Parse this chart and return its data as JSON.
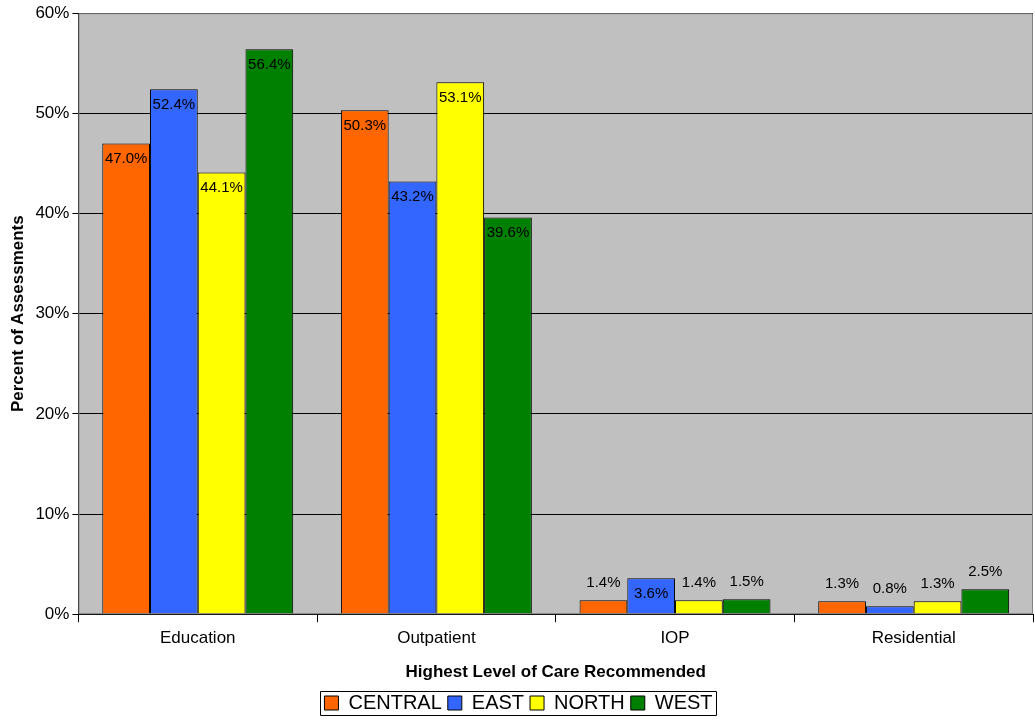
{
  "chart_data": {
    "type": "bar",
    "xlabel": "Highest Level of Care Recommended",
    "ylabel": "Percent of Assessments",
    "categories": [
      "Education",
      "Outpatient",
      "IOP",
      "Residential"
    ],
    "series": [
      {
        "name": "CENTRAL",
        "color": "#ff6600",
        "values": [
          47.0,
          50.3,
          1.4,
          1.3
        ],
        "value_labels": [
          "47.0%",
          "50.3%",
          "1.4%",
          "1.3%"
        ]
      },
      {
        "name": "EAST",
        "color": "#3366ff",
        "values": [
          52.4,
          43.2,
          3.6,
          0.8
        ],
        "value_labels": [
          "52.4%",
          "43.2%",
          "3.6%",
          "0.8%"
        ]
      },
      {
        "name": "NORTH",
        "color": "#ffff00",
        "values": [
          44.1,
          53.1,
          1.4,
          1.3
        ],
        "value_labels": [
          "44.1%",
          "53.1%",
          "1.4%",
          "1.3%"
        ]
      },
      {
        "name": "WEST",
        "color": "#008000",
        "values": [
          56.4,
          39.6,
          1.5,
          2.5
        ],
        "value_labels": [
          "56.4%",
          "39.6%",
          "1.5%",
          "2.5%"
        ]
      }
    ],
    "ylim": [
      0,
      60
    ],
    "yticks": [
      {
        "value": 0,
        "label": "0%"
      },
      {
        "value": 10,
        "label": "10%"
      },
      {
        "value": 20,
        "label": "20%"
      },
      {
        "value": 30,
        "label": "30%"
      },
      {
        "value": 40,
        "label": "40%"
      },
      {
        "value": 50,
        "label": "50%"
      },
      {
        "value": 60,
        "label": "60%"
      }
    ],
    "grid": "y",
    "legend": "bottom"
  }
}
